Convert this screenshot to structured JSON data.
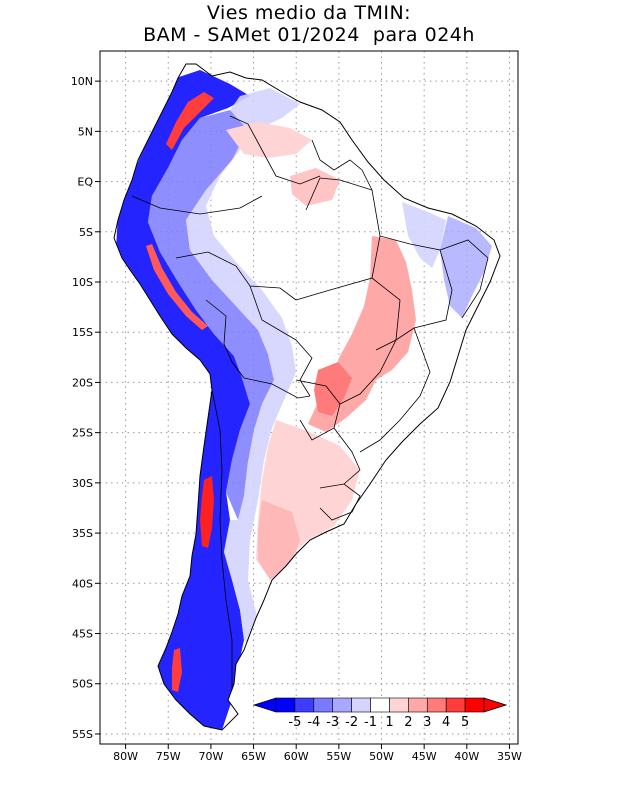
{
  "title": {
    "line1": "Vies medio da TMIN:",
    "line2": "BAM - SAMet 01/2024  para 024h"
  },
  "axes": {
    "lat_labels": [
      "10N",
      "5N",
      "EQ",
      "5S",
      "10S",
      "15S",
      "20S",
      "25S",
      "30S",
      "35S",
      "40S",
      "45S",
      "50S",
      "55S"
    ],
    "lat_values": [
      10,
      5,
      0,
      -5,
      -10,
      -15,
      -20,
      -25,
      -30,
      -35,
      -40,
      -45,
      -50,
      -55
    ],
    "lon_labels": [
      "80W",
      "75W",
      "70W",
      "65W",
      "60W",
      "55W",
      "50W",
      "45W",
      "40W",
      "35W"
    ],
    "lon_values": [
      -80,
      -75,
      -70,
      -65,
      -60,
      -55,
      -50,
      -45,
      -40,
      -35
    ],
    "lat_range": [
      -56,
      13
    ],
    "lon_range": [
      -83,
      -34
    ]
  },
  "colorbar": {
    "labels": [
      "-5",
      "-4",
      "-3",
      "-2",
      "-1",
      "1",
      "2",
      "3",
      "4",
      "5"
    ],
    "colors": [
      "#0000ff",
      "#3d3dff",
      "#7a7aff",
      "#a8a8ff",
      "#d4d4ff",
      "#ffffff",
      "#ffd4d4",
      "#ffa8a8",
      "#ff7a7a",
      "#ff3d3d",
      "#ff0000"
    ],
    "under_color": "#0000ff",
    "over_color": "#ff0000"
  },
  "colors": {
    "land": "#ffffff",
    "grid": "#9a9a9a",
    "border": "#000000"
  }
}
